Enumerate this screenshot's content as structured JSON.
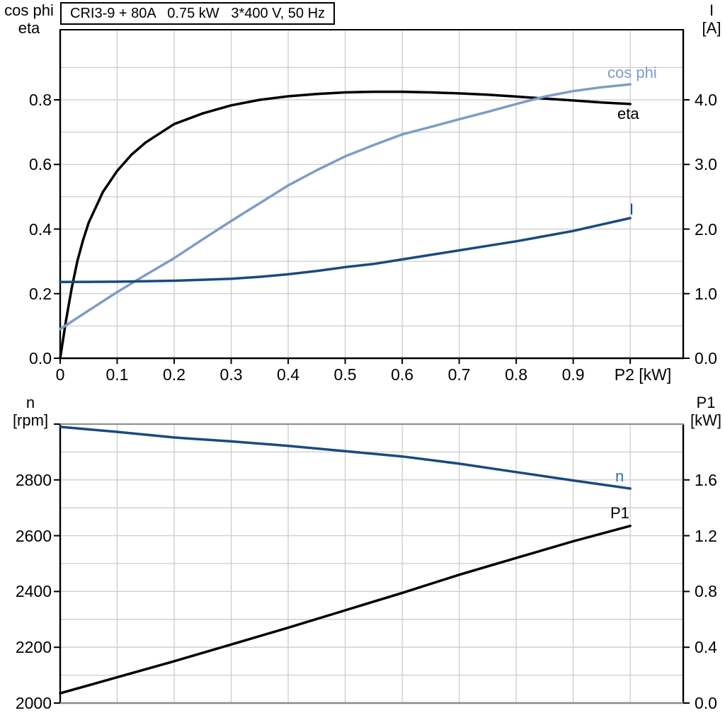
{
  "title": "CRI3-9 + 80A   0.75 kW   3*400 V, 50 Hz",
  "colors": {
    "black": "#000000",
    "dark_blue": "#1a4a7e",
    "light_blue": "#7e9dc4",
    "label_blue": "#2e74b5",
    "grid": "#cccccc",
    "frame_gray": "#8a8a8a"
  },
  "chart_data": [
    {
      "name": "motor-curves-top",
      "type": "line",
      "title": "CRI3-9 + 80A   0.75 kW   3*400 V, 50 Hz",
      "x": {
        "label": "P2 [kW]",
        "min": 0,
        "max": 1.093,
        "tick_values": [
          0,
          0.1,
          0.2,
          0.3,
          0.4,
          0.5,
          0.6,
          0.7,
          0.8,
          0.9
        ],
        "tick_labels": [
          "0",
          "0.1",
          "0.2",
          "0.3",
          "0.4",
          "0.5",
          "0.6",
          "0.7",
          "0.8",
          "0.9"
        ],
        "extra_ticks": [
          1.0
        ],
        "grid": [
          0.1,
          0.2,
          0.3,
          0.4,
          0.5,
          0.6,
          0.7,
          0.8,
          0.9,
          1.0
        ]
      },
      "left": {
        "header": [
          "cos phi",
          "eta"
        ],
        "min": 0,
        "max": 1.017,
        "tick_values": [
          0,
          0.2,
          0.4,
          0.6,
          0.8
        ],
        "tick_labels": [
          "0.0",
          "0.2",
          "0.4",
          "0.6",
          "0.8"
        ],
        "extra_ticks": [],
        "grid": [
          0.1,
          0.2,
          0.3,
          0.4,
          0.5,
          0.6,
          0.7,
          0.8,
          0.9
        ]
      },
      "right": {
        "header": [
          "I",
          "[A]"
        ],
        "min": 0,
        "max": 5.085,
        "tick_values": [
          0,
          1,
          2,
          3,
          4
        ],
        "tick_labels": [
          "0.0",
          "1.0",
          "2.0",
          "3.0",
          "4.0"
        ],
        "extra_ticks": []
      },
      "series": [
        {
          "name": "eta",
          "label": "eta",
          "axis": "left",
          "color_key": "black",
          "points": [
            [
              0,
              0
            ],
            [
              0.01,
              0.115
            ],
            [
              0.02,
              0.215
            ],
            [
              0.03,
              0.3
            ],
            [
              0.04,
              0.365
            ],
            [
              0.05,
              0.42
            ],
            [
              0.075,
              0.515
            ],
            [
              0.1,
              0.58
            ],
            [
              0.125,
              0.63
            ],
            [
              0.15,
              0.668
            ],
            [
              0.2,
              0.725
            ],
            [
              0.25,
              0.758
            ],
            [
              0.3,
              0.783
            ],
            [
              0.35,
              0.8
            ],
            [
              0.4,
              0.811
            ],
            [
              0.45,
              0.818
            ],
            [
              0.5,
              0.823
            ],
            [
              0.55,
              0.825
            ],
            [
              0.6,
              0.825
            ],
            [
              0.65,
              0.823
            ],
            [
              0.7,
              0.82
            ],
            [
              0.75,
              0.816
            ],
            [
              0.8,
              0.81
            ],
            [
              0.85,
              0.804
            ],
            [
              0.9,
              0.798
            ],
            [
              0.95,
              0.792
            ],
            [
              1,
              0.787
            ]
          ]
        },
        {
          "name": "cos_phi",
          "label": "cos phi",
          "axis": "left",
          "color_key": "light_blue",
          "points": [
            [
              0,
              0.09
            ],
            [
              0.05,
              0.148
            ],
            [
              0.1,
              0.205
            ],
            [
              0.15,
              0.258
            ],
            [
              0.2,
              0.31
            ],
            [
              0.25,
              0.368
            ],
            [
              0.3,
              0.425
            ],
            [
              0.35,
              0.48
            ],
            [
              0.4,
              0.535
            ],
            [
              0.45,
              0.582
            ],
            [
              0.5,
              0.625
            ],
            [
              0.55,
              0.66
            ],
            [
              0.6,
              0.693
            ],
            [
              0.65,
              0.716
            ],
            [
              0.7,
              0.74
            ],
            [
              0.75,
              0.763
            ],
            [
              0.8,
              0.787
            ],
            [
              0.85,
              0.81
            ],
            [
              0.9,
              0.827
            ],
            [
              0.95,
              0.839
            ],
            [
              1,
              0.848
            ]
          ]
        },
        {
          "name": "I",
          "label": "I",
          "axis": "right",
          "color_key": "dark_blue",
          "points": [
            [
              0,
              1.18
            ],
            [
              0.1,
              1.185
            ],
            [
              0.2,
              1.2
            ],
            [
              0.3,
              1.23
            ],
            [
              0.35,
              1.26
            ],
            [
              0.4,
              1.3
            ],
            [
              0.45,
              1.35
            ],
            [
              0.5,
              1.41
            ],
            [
              0.55,
              1.46
            ],
            [
              0.6,
              1.53
            ],
            [
              0.65,
              1.6
            ],
            [
              0.7,
              1.67
            ],
            [
              0.75,
              1.74
            ],
            [
              0.8,
              1.81
            ],
            [
              0.85,
              1.89
            ],
            [
              0.9,
              1.97
            ],
            [
              0.95,
              2.07
            ],
            [
              1,
              2.17
            ]
          ]
        }
      ]
    },
    {
      "name": "speed-power-bottom",
      "type": "line",
      "x": {
        "label": "",
        "min": 0,
        "max": 1.093,
        "tick_values": [],
        "tick_labels": [],
        "extra_ticks": [],
        "grid": [
          0.1,
          0.2,
          0.3,
          0.4,
          0.5,
          0.6,
          0.7,
          0.8,
          0.9,
          1.0
        ]
      },
      "left": {
        "header": [
          "n",
          "[rpm]"
        ],
        "min": 2000,
        "max": 3000,
        "tick_values": [
          2000,
          2200,
          2400,
          2600,
          2800
        ],
        "tick_labels": [
          "2000",
          "2200",
          "2400",
          "2600",
          "2800"
        ],
        "extra_ticks": [
          3000
        ],
        "grid": [
          2100,
          2200,
          2300,
          2400,
          2500,
          2600,
          2700,
          2800,
          2900
        ]
      },
      "right": {
        "header": [
          "P1",
          "[kW]"
        ],
        "min": 0,
        "max": 2,
        "tick_values": [
          0,
          0.4,
          0.8,
          1.2,
          1.6
        ],
        "tick_labels": [
          "0.0",
          "0.4",
          "0.8",
          "1.2",
          "1.6"
        ],
        "extra_ticks": []
      },
      "series": [
        {
          "name": "n",
          "label": "n",
          "axis": "left",
          "color_key": "dark_blue",
          "label_color_key": "label_blue",
          "points": [
            [
              0,
              2990
            ],
            [
              0.1,
              2972
            ],
            [
              0.2,
              2952
            ],
            [
              0.3,
              2938
            ],
            [
              0.4,
              2922
            ],
            [
              0.5,
              2903
            ],
            [
              0.6,
              2884
            ],
            [
              0.7,
              2858
            ],
            [
              0.8,
              2828
            ],
            [
              0.9,
              2798
            ],
            [
              1,
              2769
            ]
          ]
        },
        {
          "name": "P1",
          "label": "P1",
          "axis": "right",
          "color_key": "black",
          "points": [
            [
              0,
              0.07
            ],
            [
              0.1,
              0.185
            ],
            [
              0.2,
              0.3
            ],
            [
              0.3,
              0.42
            ],
            [
              0.4,
              0.54
            ],
            [
              0.5,
              0.665
            ],
            [
              0.6,
              0.79
            ],
            [
              0.7,
              0.92
            ],
            [
              0.8,
              1.04
            ],
            [
              0.9,
              1.16
            ],
            [
              1,
              1.27
            ]
          ]
        }
      ]
    }
  ]
}
